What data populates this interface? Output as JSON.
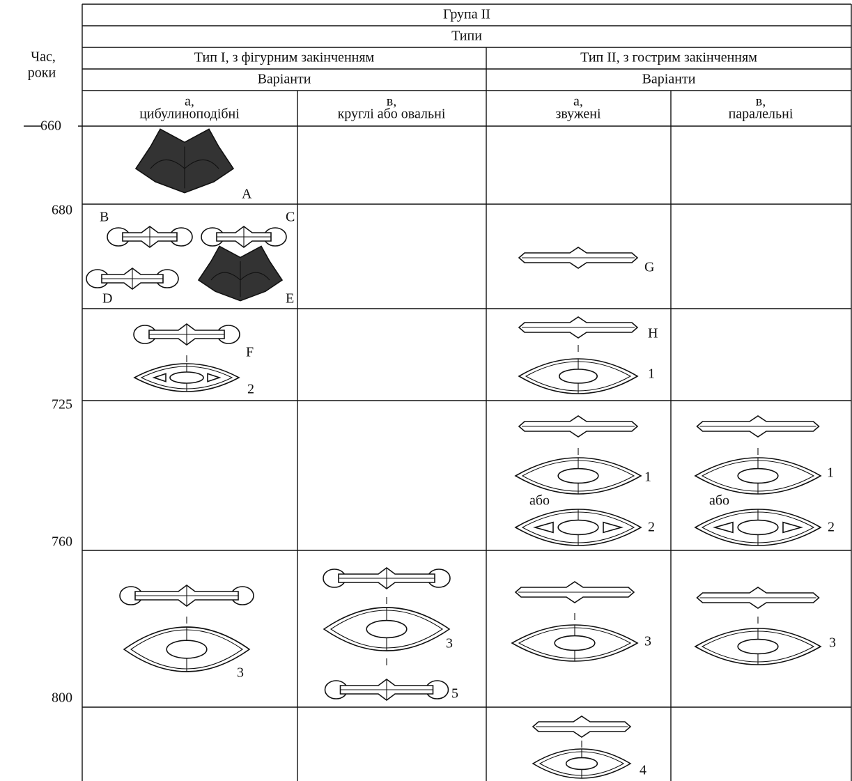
{
  "header": {
    "group": "Група II",
    "types_label": "Типи",
    "time_label": [
      "Час,",
      "роки"
    ],
    "types": [
      {
        "name": "Тип I, з фігурним закінченням",
        "variants_label": "Варіанти",
        "variants": [
          {
            "letter": "а,",
            "name": "цибулиноподібні"
          },
          {
            "letter": "в,",
            "name": "круглі або овальні"
          }
        ]
      },
      {
        "name": "Тип II, з гострим закінченням",
        "variants_label": "Варіанти",
        "variants": [
          {
            "letter": "а,",
            "name": "звужені"
          },
          {
            "letter": "в,",
            "name": "паралельні"
          }
        ]
      }
    ]
  },
  "years": [
    "660",
    "680",
    "725",
    "760",
    "800"
  ],
  "figure_labels": [
    "A",
    "B",
    "C",
    "D",
    "E",
    "G",
    "F",
    "2",
    "H",
    "1",
    "1",
    "або",
    "2",
    "1",
    "або",
    "2",
    "3",
    "3",
    "5",
    "3",
    "3",
    "4"
  ]
}
